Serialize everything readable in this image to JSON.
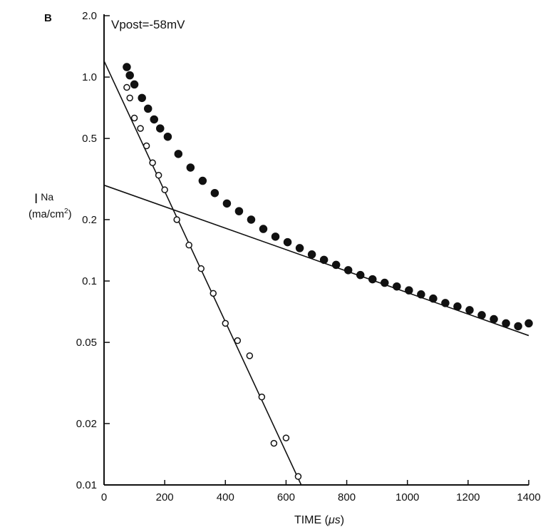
{
  "chart_data": {
    "type": "scatter",
    "panel_label": "B",
    "annotation": "Vpost=-58mV",
    "ylabel_main": "I",
    "ylabel_sub": "Na",
    "ylabel_unit": "(ma/cm",
    "ylabel_sup": "2",
    "ylabel_close": ")",
    "xlabel_main": "TIME (",
    "xlabel_mu": "μs",
    "xlabel_close": ")",
    "y_scale": "log",
    "xlim": [
      0,
      1400
    ],
    "ylim": [
      0.01,
      2.0
    ],
    "x_ticks": [
      "0",
      "200",
      "400",
      "600",
      "800",
      "1000",
      "1200",
      "1400"
    ],
    "y_ticks": [
      "0.01",
      "0.02",
      "0.05",
      "0.1",
      "0.2",
      "0.5",
      "1.0",
      "2.0"
    ],
    "grid": false,
    "series": [
      {
        "marker": "filled-circle",
        "x": [
          75,
          85,
          100,
          125,
          145,
          165,
          185,
          210,
          245,
          285,
          325,
          365,
          405,
          445,
          485,
          525,
          565,
          605,
          645,
          685,
          725,
          765,
          805,
          845,
          885,
          925,
          965,
          1005,
          1045,
          1085,
          1125,
          1165,
          1205,
          1245,
          1285,
          1325,
          1365,
          1400
        ],
        "y": [
          1.12,
          1.02,
          0.92,
          0.79,
          0.7,
          0.62,
          0.56,
          0.51,
          0.42,
          0.36,
          0.31,
          0.27,
          0.24,
          0.22,
          0.2,
          0.18,
          0.165,
          0.155,
          0.145,
          0.135,
          0.127,
          0.12,
          0.113,
          0.107,
          0.102,
          0.098,
          0.094,
          0.09,
          0.086,
          0.082,
          0.078,
          0.075,
          0.072,
          0.068,
          0.065,
          0.062,
          0.06,
          0.062
        ]
      },
      {
        "marker": "open-circle",
        "x": [
          75,
          85,
          100,
          120,
          140,
          160,
          180,
          200,
          240,
          280,
          320,
          360,
          400,
          440,
          480,
          520,
          560,
          600,
          640
        ],
        "y": [
          0.89,
          0.79,
          0.63,
          0.56,
          0.46,
          0.38,
          0.33,
          0.28,
          0.2,
          0.15,
          0.115,
          0.087,
          0.062,
          0.051,
          0.043,
          0.027,
          0.016,
          0.017,
          0.011
        ]
      }
    ],
    "fit_lines": [
      {
        "x": [
          0,
          650
        ],
        "y": [
          1.2,
          0.01
        ]
      },
      {
        "x": [
          0,
          1400
        ],
        "y": [
          0.295,
          0.054
        ]
      }
    ]
  }
}
